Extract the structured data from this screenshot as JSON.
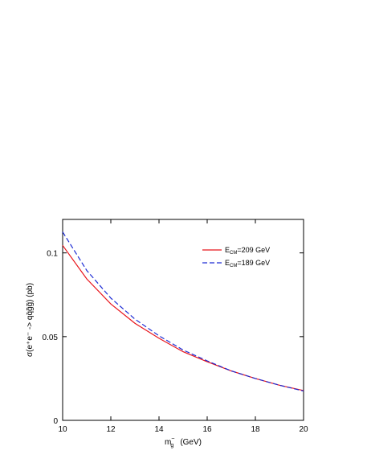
{
  "chart_data": {
    "type": "line",
    "xlabel_main": "m",
    "xlabel_sub": "g",
    "xlabel_sup": "~",
    "xlabel_unit": "(GeV)",
    "ylabel": "σ(e⁺e⁻ -> qq̄g̃g̃)    (pb)",
    "xlim": [
      10,
      20
    ],
    "ylim": [
      0,
      0.12
    ],
    "x_ticks": [
      10,
      12,
      14,
      16,
      18,
      20
    ],
    "y_ticks": [
      0,
      0.05,
      0.1
    ],
    "x_tick_labels": [
      "10",
      "12",
      "14",
      "16",
      "18",
      "20"
    ],
    "y_tick_labels": [
      "0",
      "0.05",
      "0.1"
    ],
    "legend_position": "top-right",
    "x": [
      10,
      11,
      12,
      13,
      14,
      15,
      16,
      17,
      18,
      19,
      20
    ],
    "series": [
      {
        "name_main": "E",
        "name_sub": "CM",
        "name_rest": "=209 GeV",
        "color": "#e8141b",
        "dash": "solid",
        "values": [
          0.1045,
          0.0845,
          0.0695,
          0.058,
          0.049,
          0.041,
          0.035,
          0.0295,
          0.025,
          0.021,
          0.0178
        ]
      },
      {
        "name_main": "E",
        "name_sub": "CM",
        "name_rest": "=189 GeV",
        "color": "#1c2bd4",
        "dash": "dashed",
        "values": [
          0.1125,
          0.0895,
          0.073,
          0.0605,
          0.0505,
          0.042,
          0.0355,
          0.0295,
          0.025,
          0.021,
          0.0175
        ]
      }
    ]
  }
}
